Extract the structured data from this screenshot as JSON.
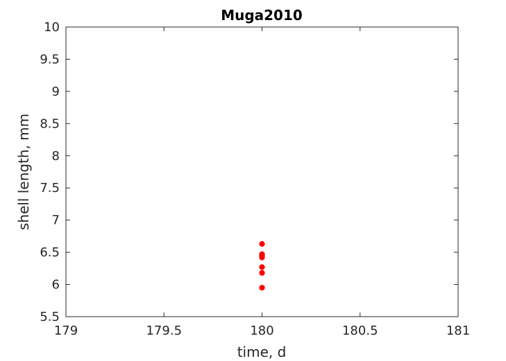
{
  "chart_data": {
    "type": "scatter",
    "title": "Muga2010",
    "xlabel": "time, d",
    "ylabel": "shell length, mm",
    "xlim": [
      179,
      181
    ],
    "ylim": [
      5.5,
      10
    ],
    "xticks": [
      "179",
      "179.5",
      "180",
      "180.5",
      "181"
    ],
    "yticks": [
      "5.5",
      "6",
      "6.5",
      "7",
      "7.5",
      "8",
      "8.5",
      "9",
      "9.5",
      "10"
    ],
    "grid": false,
    "marker_color": "#ff0000",
    "series": [
      {
        "x": [
          180,
          180,
          180,
          180,
          180,
          180,
          180,
          180
        ],
        "y": [
          5.95,
          6.18,
          6.27,
          6.42,
          6.45,
          6.46,
          6.47,
          6.63
        ]
      }
    ]
  }
}
